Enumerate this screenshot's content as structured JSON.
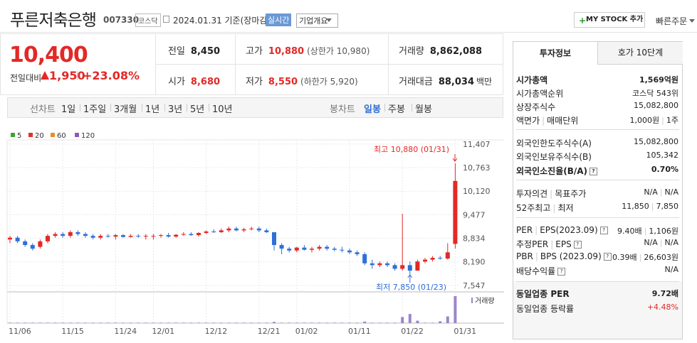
{
  "header": {
    "title": "푸른저축은행",
    "code": "007330",
    "market": "코스닥",
    "date": "2024.01.31 기준(장마감)",
    "realtime": "실시간",
    "overview": "기업개요",
    "mystock": "MY STOCK 추가",
    "quick_order": "빠른주문"
  },
  "quote": {
    "price": "10,400",
    "change_label": "전일대비",
    "change": "1,950",
    "change_rate": "+23.08%"
  },
  "stats": [
    {
      "label": "전일",
      "value": "8,450"
    },
    {
      "label": "고가",
      "value": "10,880",
      "note": "(상한가 10,980)"
    },
    {
      "label": "거래량",
      "value": "8,862,088"
    },
    {
      "label": "시가",
      "value": "8,680"
    },
    {
      "label": "저가",
      "value": "8,550",
      "note": "(하한가 5,920)"
    },
    {
      "label": "거래대금",
      "value": "88,034",
      "unit": "백만"
    }
  ],
  "tabs": {
    "line_label": "선차트",
    "line": [
      "1일",
      "1주일",
      "3개월",
      "1년",
      "3년",
      "5년",
      "10년"
    ],
    "candle_label": "봉차트",
    "candle": [
      "일봉",
      "주봉",
      "월봉"
    ],
    "selected": 0
  },
  "chart_data": {
    "type": "candlestick",
    "legend": [
      {
        "name": "5",
        "color": "#3aa335"
      },
      {
        "name": "20",
        "color": "#e2322d"
      },
      {
        "name": "60",
        "color": "#f08a24"
      },
      {
        "name": "120",
        "color": "#8a5bbd"
      }
    ],
    "up_color": "#e22926",
    "down_color": "#2f6fd8",
    "volume_color": "#9b86c9",
    "volume_label": "거래량",
    "categories": [
      "11/06",
      null,
      null,
      null,
      null,
      null,
      null,
      "11/15",
      null,
      null,
      null,
      null,
      null,
      null,
      "11/24",
      null,
      null,
      null,
      null,
      "12/01",
      null,
      null,
      null,
      null,
      null,
      null,
      "12/12",
      null,
      null,
      null,
      null,
      null,
      null,
      "12/21",
      null,
      null,
      null,
      null,
      "01/02",
      null,
      null,
      null,
      null,
      null,
      null,
      "01/11",
      null,
      null,
      null,
      null,
      null,
      null,
      "01/22",
      null,
      null,
      null,
      null,
      null,
      null,
      "01/31"
    ],
    "open": [
      8800,
      8850,
      8750,
      8650,
      8600,
      8750,
      8900,
      8950,
      8900,
      9000,
      8950,
      8900,
      8850,
      8900,
      8880,
      8920,
      8870,
      8900,
      8880,
      8880,
      8900,
      8920,
      8880,
      8930,
      8950,
      8920,
      8980,
      9020,
      9000,
      9050,
      9100,
      9050,
      9080,
      9100,
      9050,
      9000,
      8650,
      8550,
      8500,
      8580,
      8520,
      8550,
      8600,
      8550,
      8520,
      8500,
      8450,
      8400,
      8150,
      8100,
      8150,
      8100,
      8000,
      8100,
      7950,
      8200,
      8250,
      8300,
      8280,
      8680
    ],
    "high": [
      8900,
      8900,
      8800,
      8700,
      8800,
      8950,
      9000,
      9000,
      9050,
      9050,
      9000,
      8950,
      8950,
      8950,
      8950,
      8950,
      8950,
      8950,
      8950,
      8950,
      8950,
      8980,
      8950,
      9000,
      9000,
      9000,
      9050,
      9080,
      9100,
      9150,
      9150,
      9120,
      9150,
      9150,
      9100,
      9000,
      8700,
      8600,
      8600,
      8650,
      8600,
      8650,
      8650,
      8600,
      8600,
      8550,
      8500,
      8450,
      8250,
      8200,
      8200,
      8150,
      9500,
      8200,
      8250,
      8300,
      8350,
      8350,
      8700,
      10880
    ],
    "low": [
      8700,
      8700,
      8600,
      8500,
      8550,
      8700,
      8850,
      8850,
      8850,
      8900,
      8850,
      8800,
      8800,
      8850,
      8800,
      8850,
      8850,
      8850,
      8800,
      8800,
      8850,
      8850,
      8850,
      8900,
      8900,
      8880,
      8950,
      8980,
      8980,
      9000,
      9020,
      9000,
      9050,
      9000,
      8980,
      8500,
      8400,
      8450,
      8450,
      8500,
      8450,
      8500,
      8500,
      8480,
      8450,
      8400,
      8350,
      8100,
      8000,
      8050,
      8050,
      7950,
      7950,
      7850,
      7950,
      8150,
      8200,
      8250,
      8250,
      8550
    ],
    "close": [
      8850,
      8750,
      8650,
      8550,
      8750,
      8900,
      8950,
      8900,
      9000,
      8950,
      8900,
      8850,
      8900,
      8880,
      8920,
      8870,
      8900,
      8880,
      8900,
      8900,
      8920,
      8880,
      8930,
      8950,
      8920,
      8980,
      9020,
      9000,
      9050,
      9100,
      9050,
      9080,
      9100,
      9050,
      9000,
      8650,
      8550,
      8500,
      8580,
      8520,
      8550,
      8600,
      8550,
      8520,
      8500,
      8450,
      8400,
      8150,
      8100,
      8150,
      8100,
      8000,
      8100,
      7950,
      8200,
      8250,
      8300,
      8280,
      8450,
      10400
    ],
    "volume": [
      150000,
      150000,
      150000,
      150000,
      150000,
      150000,
      150000,
      150000,
      150000,
      150000,
      150000,
      150000,
      150000,
      150000,
      150000,
      150000,
      150000,
      150000,
      150000,
      150000,
      150000,
      150000,
      150000,
      150000,
      150000,
      150000,
      150000,
      150000,
      150000,
      150000,
      150000,
      150000,
      150000,
      150000,
      150000,
      400000,
      150000,
      150000,
      150000,
      150000,
      150000,
      150000,
      150000,
      150000,
      150000,
      150000,
      150000,
      500000,
      150000,
      150000,
      150000,
      150000,
      2000000,
      3000000,
      800000,
      150000,
      150000,
      600000,
      2200000,
      8862088
    ],
    "ylim": [
      7390,
      11520
    ],
    "yticks": [
      {
        "value": 11407,
        "label": "11,407"
      },
      {
        "value": 10763,
        "label": "10,763"
      },
      {
        "value": 10120,
        "label": "10,120"
      },
      {
        "value": 9477,
        "label": "9,477"
      },
      {
        "value": 8834,
        "label": "8,834"
      },
      {
        "value": 8190,
        "label": "8,190"
      },
      {
        "value": 7547,
        "label": "7,547"
      }
    ],
    "grid": true,
    "annotations": [
      {
        "text": "최고 10,880 (01/31)"
      },
      {
        "text": "최저 7,850 (01/23)"
      }
    ]
  },
  "right": {
    "tabs": [
      "투자정보",
      "호가 10단계"
    ],
    "groups": [
      [
        {
          "labels": [
            "시가총액"
          ],
          "values": [
            "1,569억원"
          ],
          "bold": true
        },
        {
          "labels": [
            "시가총액순위"
          ],
          "values": [
            "코스닥 543위"
          ]
        },
        {
          "labels": [
            "상장주식수"
          ],
          "values": [
            "15,082,800"
          ]
        },
        {
          "labels": [
            "액면가",
            "매매단위"
          ],
          "values": [
            "1,000원",
            "1주"
          ]
        }
      ],
      [
        {
          "labels": [
            "외국인한도주식수(A)"
          ],
          "values": [
            "15,082,800"
          ]
        },
        {
          "labels": [
            "외국인보유주식수(B)"
          ],
          "values": [
            "105,342"
          ]
        },
        {
          "labels": [
            "외국인소진율(B/A)"
          ],
          "values": [
            "0.70%"
          ],
          "bold": true,
          "help": true
        }
      ],
      [
        {
          "labels": [
            "투자의견",
            "목표주가"
          ],
          "values": [
            "N/A",
            "N/A"
          ]
        },
        {
          "labels": [
            "52주최고",
            "최저"
          ],
          "values": [
            "11,850",
            "7,850"
          ]
        }
      ],
      [
        {
          "labels": [
            "PER",
            "EPS(2023.09)"
          ],
          "values": [
            "9.40배",
            "1,106원"
          ],
          "help": true
        },
        {
          "labels": [
            "추정PER",
            "EPS"
          ],
          "values": [
            "N/A",
            "N/A"
          ],
          "help": true
        },
        {
          "labels": [
            "PBR",
            "BPS (2023.09)"
          ],
          "values": [
            "0.39배",
            "26,603원"
          ],
          "help": true
        },
        {
          "labels": [
            "배당수익률"
          ],
          "values": [
            "N/A"
          ],
          "help": true
        }
      ],
      [
        {
          "labels": [
            "동일업종 PER"
          ],
          "values": [
            "9.72배"
          ],
          "bold": true
        },
        {
          "labels": [
            "동일업종 등락률"
          ],
          "values": [
            "+4.48%"
          ],
          "up": true
        }
      ]
    ]
  }
}
